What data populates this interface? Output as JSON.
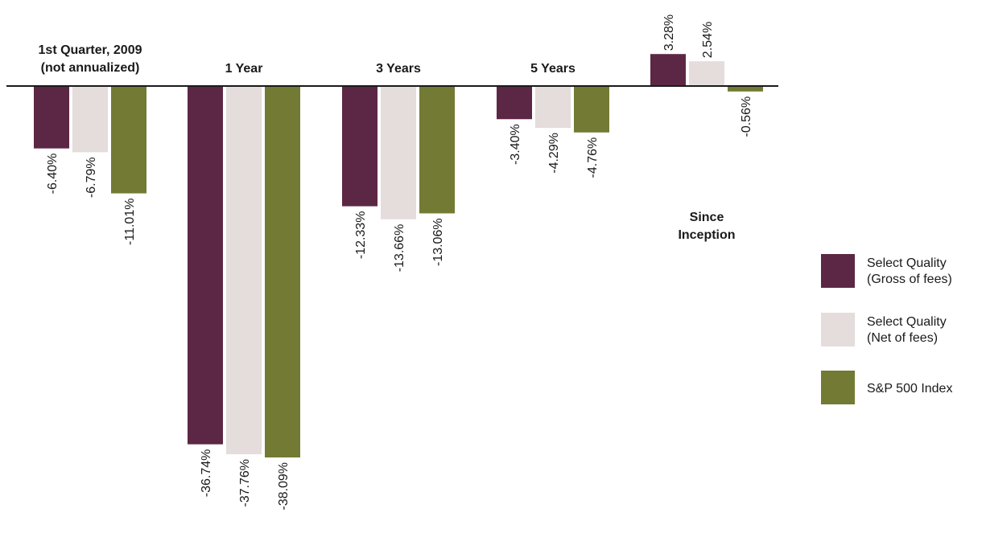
{
  "chart_data": {
    "type": "bar",
    "categories": [
      [
        "1st Quarter, 2009",
        "(not annualized)"
      ],
      [
        "1 Year"
      ],
      [
        "3 Years"
      ],
      [
        "5 Years"
      ],
      [
        "Since",
        "Inception"
      ]
    ],
    "series": [
      {
        "name": [
          "Select Quality",
          "(Gross of fees)"
        ],
        "color": "#5c2744",
        "values": [
          -6.4,
          -36.74,
          -12.33,
          -3.4,
          3.28
        ],
        "labels": [
          "-6.40%",
          "-36.74%",
          "-12.33%",
          "-3.40%",
          "3.28%"
        ]
      },
      {
        "name": [
          "Select Quality",
          "(Net of fees)"
        ],
        "color": "#e5dcdc",
        "values": [
          -6.79,
          -37.76,
          -13.66,
          -4.29,
          2.54
        ],
        "labels": [
          "-6.79%",
          "-37.76%",
          "-13.66%",
          "-4.29%",
          "2.54%"
        ]
      },
      {
        "name": [
          "S&P 500 Index"
        ],
        "color": "#737a33",
        "values": [
          -11.01,
          -38.09,
          -13.06,
          -4.76,
          -0.56
        ],
        "labels": [
          "-11.01%",
          "-38.09%",
          "-13.06%",
          "-4.76%",
          "-0.56%"
        ]
      }
    ],
    "value_format": "percent",
    "legend_position": "right",
    "grid": false
  }
}
